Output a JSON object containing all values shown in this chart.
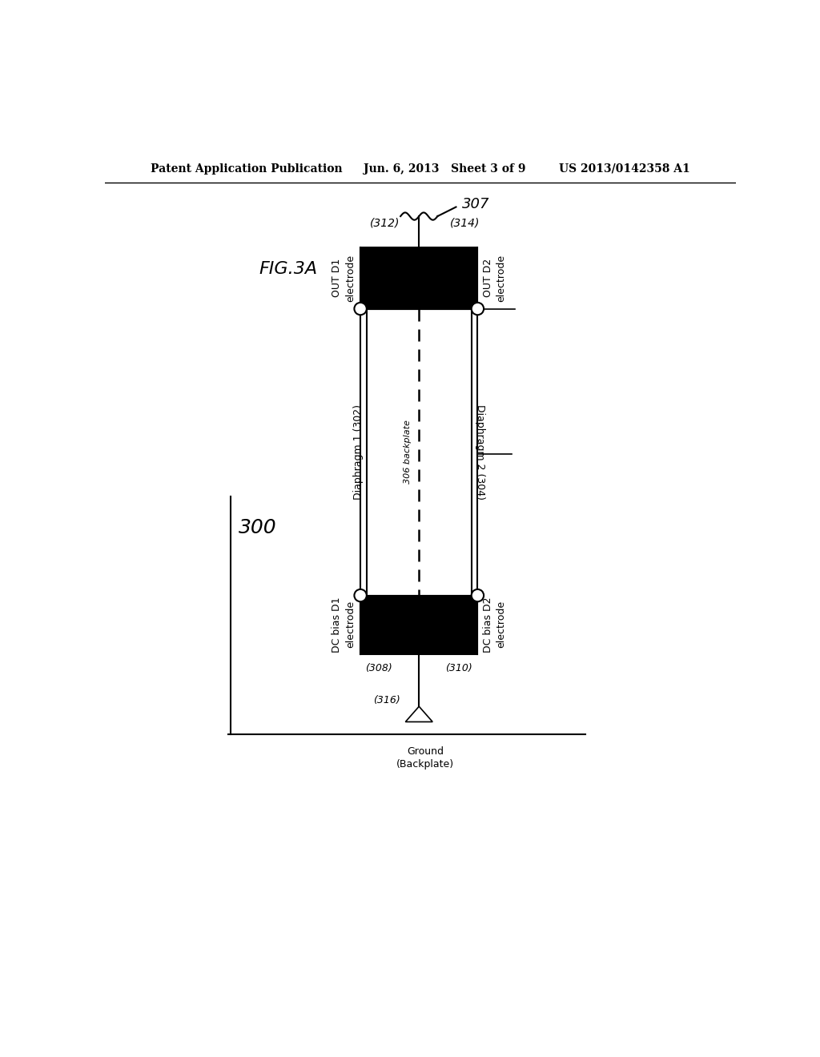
{
  "bg_color": "#ffffff",
  "header_left": "Patent Application Publication",
  "header_center": "Jun. 6, 2013   Sheet 3 of 9",
  "header_right": "US 2013/0142358 A1",
  "fig_label": "FIG.3A",
  "main_label": "300",
  "labels": {
    "out_d1": "OUT D1\nelectrode",
    "out_d1_ref": "(312)",
    "out_d2": "OUT D2\nelectrode",
    "out_d2_ref": "(314)",
    "diaphragm1": "Diaphragm 1 (302)",
    "diaphragm2": "Diaphragm 2 (304)",
    "backplate": "306 backplate",
    "dc_d1": "DC bias D1\nelectrode",
    "dc_d1_ref": "(308)",
    "dc_d2": "DC bias D2\nelectrode",
    "dc_d2_ref": "(310)",
    "ground_ref": "(316)",
    "ground": "Ground\n(Backplate)",
    "wire_ref": "307"
  }
}
